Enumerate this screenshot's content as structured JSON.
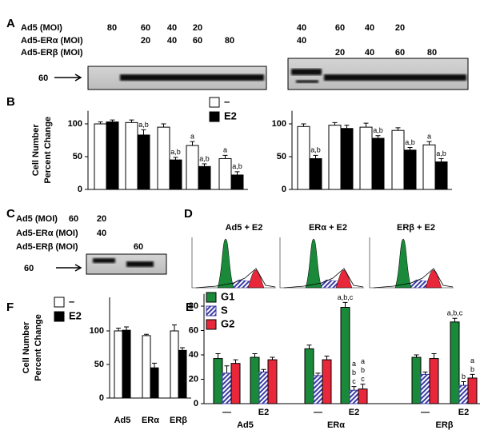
{
  "panel_letters": [
    "A",
    "B",
    "C",
    "D",
    "E",
    "F"
  ],
  "panel_a": {
    "rows": [
      {
        "label": "Ad5 (MOI)",
        "left": [
          "80",
          "60",
          "40",
          "20",
          null
        ],
        "right": [
          "40",
          "60",
          "40",
          "20",
          null
        ]
      },
      {
        "label": "Ad5-ERα (MOI)",
        "left": [
          null,
          "20",
          "40",
          "60",
          "80"
        ],
        "right": [
          "40",
          null,
          null,
          null,
          null
        ]
      },
      {
        "label": "Ad5-ERβ (MOI)",
        "left": [
          null,
          null,
          null,
          null,
          null
        ],
        "right": [
          null,
          "20",
          "40",
          "60",
          "80"
        ]
      }
    ],
    "marker": "60"
  },
  "panel_c": {
    "rows": [
      {
        "label": "Ad5 (MOI)",
        "lanes": [
          "60",
          "20",
          null
        ]
      },
      {
        "label": "Ad5-ERα (MOI)",
        "lanes": [
          null,
          "40",
          null
        ]
      },
      {
        "label": "Ad5-ERβ (MOI)",
        "lanes": [
          null,
          null,
          "60"
        ]
      }
    ],
    "marker": "60"
  },
  "panel_d": {
    "titles": [
      "Ad5 + E2",
      "ERα + E2",
      "ERβ + E2"
    ]
  },
  "chart_data": [
    {
      "type": "bar",
      "ylabel": [
        "Cell Number",
        "Percent Change"
      ],
      "ylim": [
        0,
        120
      ],
      "yticks": [
        0,
        50,
        100
      ],
      "legend": true,
      "series": [
        {
          "name": "–",
          "color": "#ffffff",
          "values": [
            100,
            102,
            95,
            67,
            47
          ],
          "errors": [
            3,
            4,
            5,
            6,
            5
          ],
          "labels": [
            null,
            null,
            null,
            [
              "a"
            ],
            [
              "a"
            ]
          ]
        },
        {
          "name": "E2",
          "color": "#000000",
          "values": [
            103,
            83,
            45,
            35,
            22
          ],
          "errors": [
            3,
            8,
            4,
            4,
            5
          ],
          "labels": [
            null,
            [
              "a,b"
            ],
            [
              "a,b"
            ],
            [
              "a,b"
            ],
            [
              "a,b"
            ]
          ]
        }
      ]
    },
    {
      "type": "bar",
      "ylim": [
        0,
        120
      ],
      "yticks": [
        0,
        50,
        100
      ],
      "legend": false,
      "series": [
        {
          "color": "#ffffff",
          "values": [
            96,
            98,
            95,
            90,
            68
          ],
          "errors": [
            4,
            4,
            6,
            4,
            5
          ],
          "labels": [
            null,
            null,
            null,
            null,
            [
              "a"
            ]
          ]
        },
        {
          "color": "#000000",
          "values": [
            47,
            93,
            78,
            60,
            42
          ],
          "errors": [
            5,
            5,
            4,
            4,
            5
          ],
          "labels": [
            [
              "a,b"
            ],
            null,
            [
              "a,b"
            ],
            [
              "a,b"
            ],
            [
              "a,b"
            ]
          ]
        }
      ]
    },
    {
      "type": "bar",
      "ylabel": [
        "Cell Number",
        "Percent Change"
      ],
      "categories": [
        "Ad5",
        "ERα",
        "ERβ"
      ],
      "ylim": [
        0,
        150
      ],
      "yticks": [
        0,
        50,
        100
      ],
      "legend": true,
      "series": [
        {
          "name": "–",
          "color": "#ffffff",
          "values": [
            100,
            93,
            100
          ],
          "errors": [
            4,
            2,
            9
          ]
        },
        {
          "name": "E2",
          "color": "#000000",
          "values": [
            101,
            45,
            71
          ],
          "errors": [
            5,
            7,
            4
          ]
        }
      ]
    },
    {
      "type": "bar",
      "categories": [
        "—",
        "E2",
        "—",
        "E2",
        "—",
        "E2"
      ],
      "groups": [
        "Ad5",
        "ERα",
        "ERβ"
      ],
      "ylim": [
        0,
        90
      ],
      "yticks": [
        0,
        20,
        40,
        60,
        80
      ],
      "legend": true,
      "series": [
        {
          "name": "G1",
          "color": "#1a8a3a",
          "values": [
            37,
            38,
            45,
            79,
            38,
            67
          ],
          "errors": [
            4,
            3,
            3,
            4,
            2,
            3
          ],
          "labels": [
            null,
            null,
            null,
            [
              "a,b,c"
            ],
            null,
            [
              "a,b,c"
            ]
          ]
        },
        {
          "name": "S",
          "color": "#3b3ba8",
          "hatch": true,
          "values": [
            25,
            26,
            23,
            11,
            24,
            15
          ],
          "errors": [
            6,
            2,
            2,
            3,
            2,
            3
          ],
          "labels": [
            null,
            null,
            null,
            [
              "a",
              "b",
              "c"
            ],
            null,
            [
              "b"
            ]
          ]
        },
        {
          "name": "G2",
          "color": "#e8283a",
          "values": [
            33,
            36,
            36,
            12,
            37,
            21
          ],
          "errors": [
            3,
            2,
            3,
            4,
            4,
            3
          ],
          "labels": [
            null,
            null,
            null,
            [
              "a",
              "b",
              "c"
            ],
            null,
            [
              "a",
              "b"
            ]
          ]
        }
      ]
    }
  ]
}
